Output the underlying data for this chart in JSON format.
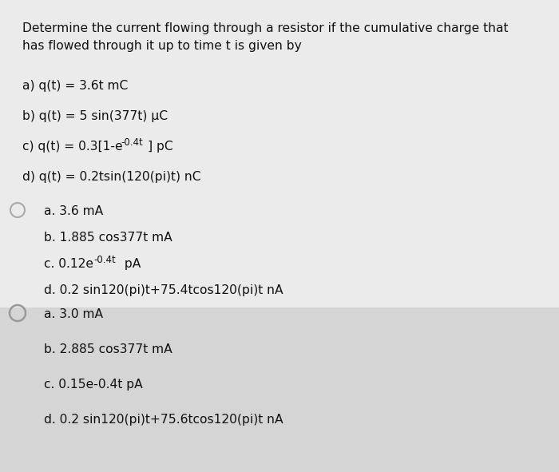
{
  "top_bg": "#ebebeb",
  "bottom_bg": "#d5d5d5",
  "question_line1": "Determine the current flowing through a resistor if the cumulative charge that",
  "question_line2": "has flowed through it up to time t is given by",
  "part_a": "a) q(t) = 3.6t mC",
  "part_b": "b) q(t) = 5 sin(377t) μC",
  "part_c_pre": "c) q(t) = 0.3[1-e",
  "part_c_sup": "-0.4t",
  "part_c_post": "] pC",
  "part_d": "d) q(t) = 0.2tsin(120(pi)t) nC",
  "ans1_a": "a. 3.6 mA",
  "ans1_b": "b. 1.885 cos377t mA",
  "ans1_c_pre": "c. 0.12e",
  "ans1_c_sup": "-0.4t",
  "ans1_c_post": " pA",
  "ans1_d": "d. 0.2 sin120(pi)t+75.4tcos120(pi)t nA",
  "ans2_a": "a. 3.0 mA",
  "ans2_b": "b. 2.885 cos377t mA",
  "ans2_c": "c. 0.15e-0.4t pA",
  "ans2_d": "d. 0.2 sin120(pi)t+75.6tcos120(pi)t nA",
  "circle1_color": "#aaaaaa",
  "circle2_color": "#999999",
  "text_color": "#111111",
  "font_size": 11.2,
  "sup_font_size": 8.5
}
